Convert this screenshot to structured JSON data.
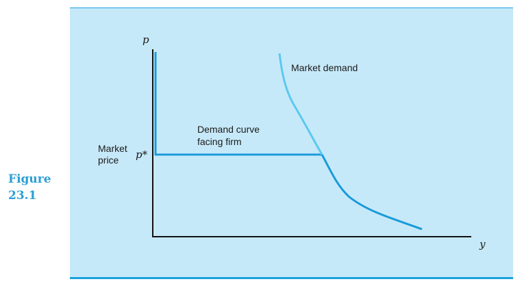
{
  "figure": {
    "label_line1": "Figure",
    "label_line2": "23.1"
  },
  "diagram": {
    "y_axis_label": "p",
    "x_axis_label": "y",
    "price_tick_label": "p*",
    "market_price_line1": "Market",
    "market_price_line2": "price",
    "firm_curve_line1": "Demand curve",
    "firm_curve_line2": "facing firm",
    "market_curve_label": "Market demand"
  },
  "colors": {
    "panel": "#c6e9f9",
    "rule": "#1aa0de",
    "firm_curve": "#1a9ad9",
    "market_curve_upper": "#5cc8f0",
    "axes": "#111111",
    "figure_label": "#2a9fd6"
  }
}
